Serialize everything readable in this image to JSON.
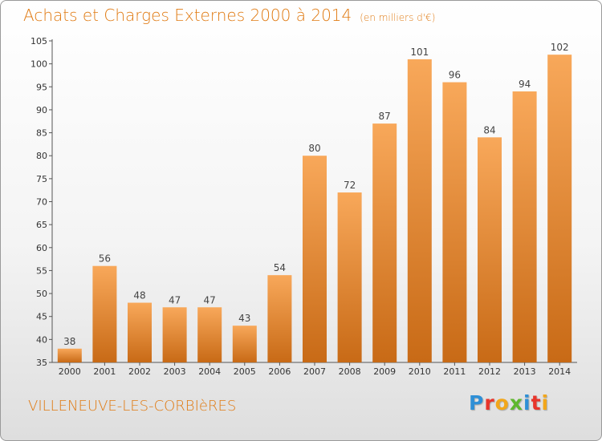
{
  "header": {
    "title": "Achats et Charges Externes 2000 à 2014",
    "unit": "(en milliers d'€)"
  },
  "footer": {
    "commune": "VILLENEUVE-LES-CORBIèRES",
    "logo_letters": [
      "P",
      "r",
      "o",
      "x",
      "i",
      "t",
      "i"
    ],
    "logo_colors": [
      "#2e8fd6",
      "#e8352b",
      "#f2a71b",
      "#5fb82e",
      "#2e8fd6",
      "#e8352b",
      "#f2a71b"
    ]
  },
  "colors": {
    "accent": "#e07a12",
    "bar_light": "#f8a85a",
    "bar_dark": "#c86a16"
  },
  "chart_data": {
    "type": "bar",
    "title": "Achats et Charges Externes 2000 à 2014",
    "categories": [
      "2000",
      "2001",
      "2002",
      "2003",
      "2004",
      "2005",
      "2006",
      "2007",
      "2008",
      "2009",
      "2010",
      "2011",
      "2012",
      "2013",
      "2014"
    ],
    "values": [
      38,
      56,
      48,
      47,
      47,
      43,
      54,
      80,
      72,
      87,
      101,
      96,
      84,
      94,
      102
    ],
    "xlabel": "",
    "ylabel": "",
    "ylim": [
      35,
      105
    ],
    "yticks": [
      35,
      40,
      45,
      50,
      55,
      60,
      65,
      70,
      75,
      80,
      85,
      90,
      95,
      100,
      105
    ],
    "grid": false,
    "legend": "none",
    "data_labels": true
  }
}
